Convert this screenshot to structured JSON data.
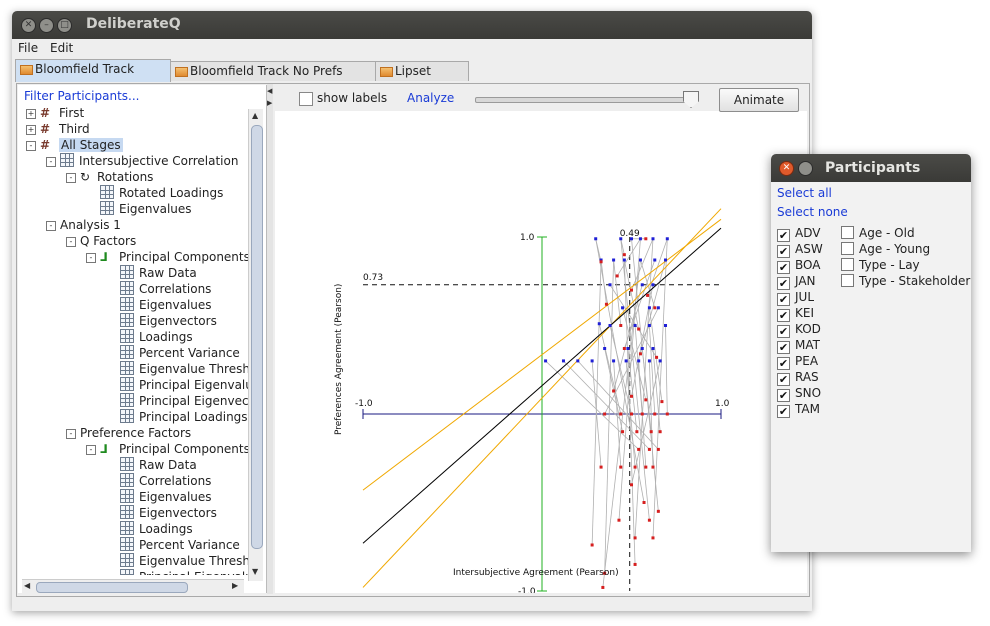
{
  "window": {
    "title": "DeliberateQ"
  },
  "menu": {
    "file": "File",
    "edit": "Edit"
  },
  "tabs": [
    {
      "label": "Bloomfield Track"
    },
    {
      "label": "Bloomfield Track No Prefs"
    },
    {
      "label": "Lipset"
    }
  ],
  "left": {
    "filter_link": "Filter Participants...",
    "tree": [
      {
        "label": "First",
        "icon": "hash-icon",
        "level": 0,
        "expander": "+"
      },
      {
        "label": "Third",
        "icon": "hash-icon",
        "level": 0,
        "expander": "+"
      },
      {
        "label": "All Stages",
        "icon": "hash-icon",
        "level": 0,
        "expander": "-",
        "selected": true
      },
      {
        "label": "Intersubjective Correlation",
        "icon": "grid-icon",
        "level": 1,
        "expander": "-"
      },
      {
        "label": "Rotations",
        "icon": "rotate-icon",
        "level": 2,
        "expander": "-"
      },
      {
        "label": "Rotated Loadings",
        "icon": "grid-icon",
        "level": 3
      },
      {
        "label": "Eigenvalues",
        "icon": "grid-icon",
        "level": 3
      },
      {
        "label": "Analysis 1",
        "icon": "",
        "level": 1,
        "expander": "-"
      },
      {
        "label": "Q Factors",
        "icon": "",
        "level": 2,
        "expander": "-"
      },
      {
        "label": "Principal Components",
        "icon": "pc-icon",
        "level": 3,
        "expander": "-"
      },
      {
        "label": "Raw Data",
        "icon": "grid-icon",
        "level": 4
      },
      {
        "label": "Correlations",
        "icon": "grid-icon",
        "level": 4
      },
      {
        "label": "Eigenvalues",
        "icon": "grid-icon",
        "level": 4
      },
      {
        "label": "Eigenvectors",
        "icon": "grid-icon",
        "level": 4
      },
      {
        "label": "Loadings",
        "icon": "grid-icon",
        "level": 4
      },
      {
        "label": "Percent Variance",
        "icon": "grid-icon",
        "level": 4
      },
      {
        "label": "Eigenvalue Thresh",
        "icon": "grid-icon",
        "level": 4
      },
      {
        "label": "Principal Eigenvalu",
        "icon": "grid-icon",
        "level": 4
      },
      {
        "label": "Principal Eigenvec",
        "icon": "grid-icon",
        "level": 4
      },
      {
        "label": "Principal Loadings",
        "icon": "grid-icon",
        "level": 4
      },
      {
        "label": "Preference Factors",
        "icon": "",
        "level": 2,
        "expander": "-"
      },
      {
        "label": "Principal Components",
        "icon": "pc-icon",
        "level": 3,
        "expander": "-"
      },
      {
        "label": "Raw Data",
        "icon": "grid-icon",
        "level": 4
      },
      {
        "label": "Correlations",
        "icon": "grid-icon",
        "level": 4
      },
      {
        "label": "Eigenvalues",
        "icon": "grid-icon",
        "level": 4
      },
      {
        "label": "Eigenvectors",
        "icon": "grid-icon",
        "level": 4
      },
      {
        "label": "Loadings",
        "icon": "grid-icon",
        "level": 4
      },
      {
        "label": "Percent Variance",
        "icon": "grid-icon",
        "level": 4
      },
      {
        "label": "Eigenvalue Thresh",
        "icon": "grid-icon",
        "level": 4
      },
      {
        "label": "Principal Eigenvalu",
        "icon": "grid-icon",
        "level": 4
      }
    ]
  },
  "toolbar": {
    "show_labels": "show labels",
    "show_labels_checked": false,
    "analyze": "Analyze",
    "animate": "Animate",
    "slider_value": 0.96
  },
  "chart_data": {
    "type": "scatter",
    "xlabel": "Intersubjective Agreement (Pearson)",
    "ylabel": "Preferences Agreement (Pearson)",
    "xlim": [
      -1.0,
      1.0
    ],
    "ylim": [
      -1.0,
      1.0
    ],
    "tick_labels": {
      "x_min": "-1.0",
      "x_max": "1.0",
      "y_max": "1.0",
      "y_min": "-1.0"
    },
    "annotations": {
      "h_line_value": 0.73,
      "h_line_label": "0.73",
      "v_line_value": 0.49,
      "v_line_label": "0.49"
    },
    "green_line_x": 0.0,
    "series": [
      {
        "color": "#1f1fd6",
        "points": [
          [
            0.3,
            0.99
          ],
          [
            0.44,
            0.99
          ],
          [
            0.5,
            0.99
          ],
          [
            0.55,
            0.99
          ],
          [
            0.62,
            0.99
          ],
          [
            0.7,
            0.99
          ],
          [
            0.33,
            0.87
          ],
          [
            0.4,
            0.87
          ],
          [
            0.46,
            0.87
          ],
          [
            0.55,
            0.87
          ],
          [
            0.63,
            0.87
          ],
          [
            0.69,
            0.87
          ],
          [
            0.38,
            0.73
          ],
          [
            0.56,
            0.73
          ],
          [
            0.62,
            0.73
          ],
          [
            0.45,
            0.6
          ],
          [
            0.6,
            0.6
          ],
          [
            0.65,
            0.6
          ],
          [
            0.32,
            0.51
          ],
          [
            0.38,
            0.5
          ],
          [
            0.52,
            0.5
          ],
          [
            0.6,
            0.5
          ],
          [
            0.69,
            0.5
          ],
          [
            0.35,
            0.37
          ],
          [
            0.48,
            0.37
          ],
          [
            0.56,
            0.37
          ],
          [
            0.62,
            0.37
          ],
          [
            0.02,
            0.3
          ],
          [
            0.12,
            0.3
          ],
          [
            0.2,
            0.3
          ],
          [
            0.28,
            0.3
          ],
          [
            0.4,
            0.3
          ],
          [
            0.47,
            0.3
          ],
          [
            0.54,
            0.3
          ],
          [
            0.6,
            0.3
          ],
          [
            0.66,
            0.3
          ]
        ]
      },
      {
        "color": "#d61f1f",
        "points": [
          [
            0.33,
            0.86
          ],
          [
            0.46,
            0.9
          ],
          [
            0.58,
            0.99
          ],
          [
            0.42,
            0.78
          ],
          [
            0.5,
            0.7
          ],
          [
            0.59,
            0.67
          ],
          [
            0.36,
            0.62
          ],
          [
            0.44,
            0.5
          ],
          [
            0.54,
            0.48
          ],
          [
            0.63,
            0.6
          ],
          [
            0.46,
            0.37
          ],
          [
            0.55,
            0.34
          ],
          [
            0.64,
            0.32
          ],
          [
            0.4,
            0.13
          ],
          [
            0.5,
            0.1
          ],
          [
            0.58,
            0.08
          ],
          [
            0.67,
            0.07
          ],
          [
            0.35,
            0.0
          ],
          [
            0.44,
            0.0
          ],
          [
            0.5,
            0.0
          ],
          [
            0.56,
            0.0
          ],
          [
            0.63,
            0.0
          ],
          [
            0.7,
            0.0
          ],
          [
            0.45,
            -0.1
          ],
          [
            0.53,
            -0.1
          ],
          [
            0.61,
            -0.1
          ],
          [
            0.66,
            -0.1
          ],
          [
            0.54,
            -0.2
          ],
          [
            0.6,
            -0.2
          ],
          [
            0.65,
            -0.2
          ],
          [
            0.33,
            -0.3
          ],
          [
            0.44,
            -0.3
          ],
          [
            0.52,
            -0.3
          ],
          [
            0.58,
            -0.3
          ],
          [
            0.62,
            -0.3
          ],
          [
            0.5,
            -0.4
          ],
          [
            0.57,
            -0.5
          ],
          [
            0.6,
            -0.6
          ],
          [
            0.65,
            -0.55
          ],
          [
            0.43,
            -0.6
          ],
          [
            0.52,
            -0.7
          ],
          [
            0.62,
            -0.7
          ],
          [
            0.28,
            -0.74
          ],
          [
            0.35,
            -0.9
          ],
          [
            0.52,
            -0.85
          ],
          [
            0.34,
            -0.98
          ]
        ]
      }
    ],
    "fit_line": [
      [
        -1.0,
        -0.73
      ],
      [
        1.0,
        1.05
      ]
    ],
    "confidence_lines": [
      [
        [
          -1.0,
          -0.43
        ],
        [
          1.0,
          1.1
        ]
      ],
      [
        [
          -1.0,
          -0.98
        ],
        [
          1.0,
          1.16
        ]
      ]
    ]
  },
  "participants": {
    "title": "Participants",
    "select_all": "Select all",
    "select_none": "Select none",
    "names": [
      {
        "label": "ADV",
        "checked": true
      },
      {
        "label": "ASW",
        "checked": true
      },
      {
        "label": "BOA",
        "checked": true
      },
      {
        "label": "JAN",
        "checked": true
      },
      {
        "label": "JUL",
        "checked": true
      },
      {
        "label": "KEI",
        "checked": true
      },
      {
        "label": "KOD",
        "checked": true
      },
      {
        "label": "MAT",
        "checked": true
      },
      {
        "label": "PEA",
        "checked": true
      },
      {
        "label": "RAS",
        "checked": true
      },
      {
        "label": "SNO",
        "checked": true
      },
      {
        "label": "TAM",
        "checked": true
      }
    ],
    "groups": [
      {
        "label": "Age - Old",
        "checked": false
      },
      {
        "label": "Age - Young",
        "checked": false
      },
      {
        "label": "Type - Lay",
        "checked": false
      },
      {
        "label": "Type - Stakeholder",
        "checked": false
      }
    ]
  }
}
